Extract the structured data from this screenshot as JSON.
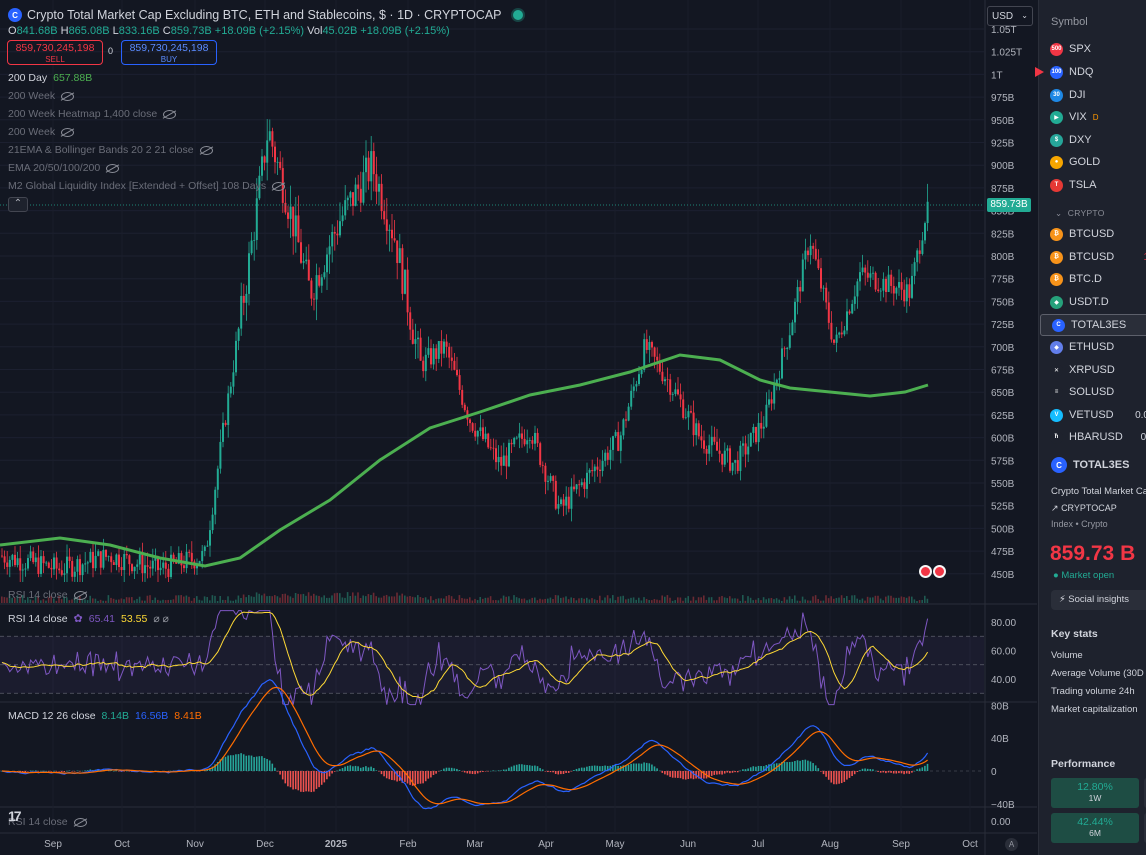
{
  "header": {
    "title": "Crypto Total Market Cap Excluding BTC, ETH and Stablecoins, $ · 1D · CRYPTOCAP",
    "ohlc": {
      "o_label": "O",
      "o": "841.68B",
      "h_label": "H",
      "h": "865.08B",
      "l_label": "L",
      "l": "833.16B",
      "c_label": "C",
      "c": "859.73B",
      "chg": "+18.09B (+2.15%)",
      "vol_label": "Vol",
      "vol": "45.02B",
      "vol_chg": "+18.09B (+2.15%)"
    },
    "sell_price": "859,730,245,198",
    "sell_label": "SELL",
    "buy_price": "859,730,245,198",
    "buy_label": "BUY",
    "spread": "0",
    "currency": "USD"
  },
  "indicators": [
    {
      "name": "200 Day",
      "value": "657.88B",
      "visible": true
    },
    {
      "name": "200 Week",
      "visible": false
    },
    {
      "name": "200 Week Heatmap 1,400 close",
      "visible": false
    },
    {
      "name": "200 Week",
      "visible": false
    },
    {
      "name": "21EMA & Bollinger Bands 20 2 21 close",
      "visible": false
    },
    {
      "name": "EMA 20/50/100/200",
      "visible": false
    },
    {
      "name": "M2 Global Liquidity Index [Extended + Offset] 108 Days",
      "visible": false
    }
  ],
  "price_axis": [
    "1.05T",
    "1.025T",
    "1T",
    "975B",
    "950B",
    "925B",
    "900B",
    "875B",
    "850B",
    "825B",
    "800B",
    "775B",
    "750B",
    "725B",
    "700B",
    "675B",
    "650B",
    "625B",
    "600B",
    "575B",
    "550B",
    "525B",
    "500B",
    "475B",
    "450B"
  ],
  "last_price_tag": "859.73B",
  "rsi_hidden_label": "RSI 14 close",
  "rsi": {
    "label": "RSI 14 close",
    "v1": "65.41",
    "v2": "53.55",
    "axis": [
      "80.00",
      "60.00",
      "40.00"
    ]
  },
  "macd": {
    "label": "MACD 12 26 close",
    "v1": "8.14B",
    "v2": "16.56B",
    "v3": "8.41B",
    "axis": [
      "80B",
      "40B",
      "0",
      "−40B"
    ]
  },
  "rsi_bottom": {
    "label": "RSI 14 close",
    "axis": "0.00"
  },
  "time_axis": [
    "Sep",
    "Oct",
    "Nov",
    "Dec",
    "2025",
    "Feb",
    "Mar",
    "Apr",
    "May",
    "Jun",
    "Jul",
    "Aug",
    "Sep",
    "Oct"
  ],
  "auto_label": "A",
  "colors": {
    "up": "#22ab94",
    "down": "#f23645",
    "ma": "#4caf50",
    "rsi": "#7e57c2",
    "rsi_ma": "#fdd835",
    "macd": "#2962ff",
    "signal": "#ff6d00"
  },
  "chart_data": {
    "type": "candlestick",
    "months": [
      "Sep",
      "Oct",
      "Nov",
      "Dec",
      "Jan",
      "Feb",
      "Mar",
      "Apr",
      "May",
      "Jun",
      "Jul",
      "Aug",
      "Sep"
    ],
    "monthly_close_approx_B": [
      455,
      470,
      590,
      900,
      880,
      720,
      620,
      560,
      700,
      620,
      780,
      790,
      860
    ],
    "ma200_approx_B": [
      480,
      470,
      460,
      500,
      560,
      600,
      640,
      660,
      680,
      690,
      650,
      650,
      658
    ],
    "ylim": [
      440,
      1060
    ]
  },
  "watchlist": {
    "header": "Symbol",
    "group_label": "CRYPTO",
    "items": [
      {
        "sym": "SPX",
        "icon": "500",
        "color": "#f23645",
        "extra": ""
      },
      {
        "sym": "NDQ",
        "icon": "100",
        "color": "#2962ff",
        "extra": ""
      },
      {
        "sym": "DJI",
        "icon": "30",
        "color": "#1e88e5",
        "extra": ""
      },
      {
        "sym": "VIX",
        "icon": "▶",
        "color": "#22ab94",
        "extra": ""
      },
      {
        "sym": "DXY",
        "icon": "$",
        "color": "#26a69a",
        "extra": ""
      },
      {
        "sym": "GOLD",
        "icon": "●",
        "color": "#f7a600",
        "extra": ""
      },
      {
        "sym": "TSLA",
        "icon": "T",
        "color": "#e53935",
        "extra": ""
      },
      {
        "sym": "BTCUSD",
        "icon": "₿",
        "color": "#f7931a",
        "extra": ""
      },
      {
        "sym": "BTCUSD",
        "icon": "₿",
        "color": "#f7931a",
        "extra": "1"
      },
      {
        "sym": "BTC.D",
        "icon": "₿",
        "color": "#f7931a",
        "extra": ""
      },
      {
        "sym": "USDT.D",
        "icon": "◆",
        "color": "#26a17b",
        "extra": ""
      },
      {
        "sym": "TOTAL3ES",
        "icon": "C",
        "color": "#2962ff",
        "extra": ""
      },
      {
        "sym": "ETHUSD",
        "icon": "◆",
        "color": "#627eea",
        "extra": ""
      },
      {
        "sym": "XRPUSD",
        "icon": "✕",
        "color": "#1e222d",
        "extra": ""
      },
      {
        "sym": "SOLUSD",
        "icon": "≡",
        "color": "#1e222d",
        "extra": ""
      },
      {
        "sym": "VETUSD",
        "icon": "V",
        "color": "#15bdff",
        "extra": "0.0"
      },
      {
        "sym": "HBARUSD",
        "icon": "ħ",
        "color": "#1e222d",
        "extra": "0."
      }
    ],
    "vix_badge": "D"
  },
  "detail": {
    "symbol": "TOTAL3ES",
    "name": "Crypto Total Market Ca",
    "exchange": "CRYPTOCAP",
    "category": "Index • Crypto",
    "price": "859.73 B",
    "status": "● Market open",
    "social": "⚡ Social insights",
    "key_stats_title": "Key stats",
    "key_stats": [
      "Volume",
      "Average Volume (30D",
      "Trading volume 24h",
      "Market capitalization"
    ],
    "performance_title": "Performance",
    "perf": [
      {
        "value": "12.80%",
        "period": "1W"
      },
      {
        "value": "42.44%",
        "period": "6M"
      }
    ]
  }
}
